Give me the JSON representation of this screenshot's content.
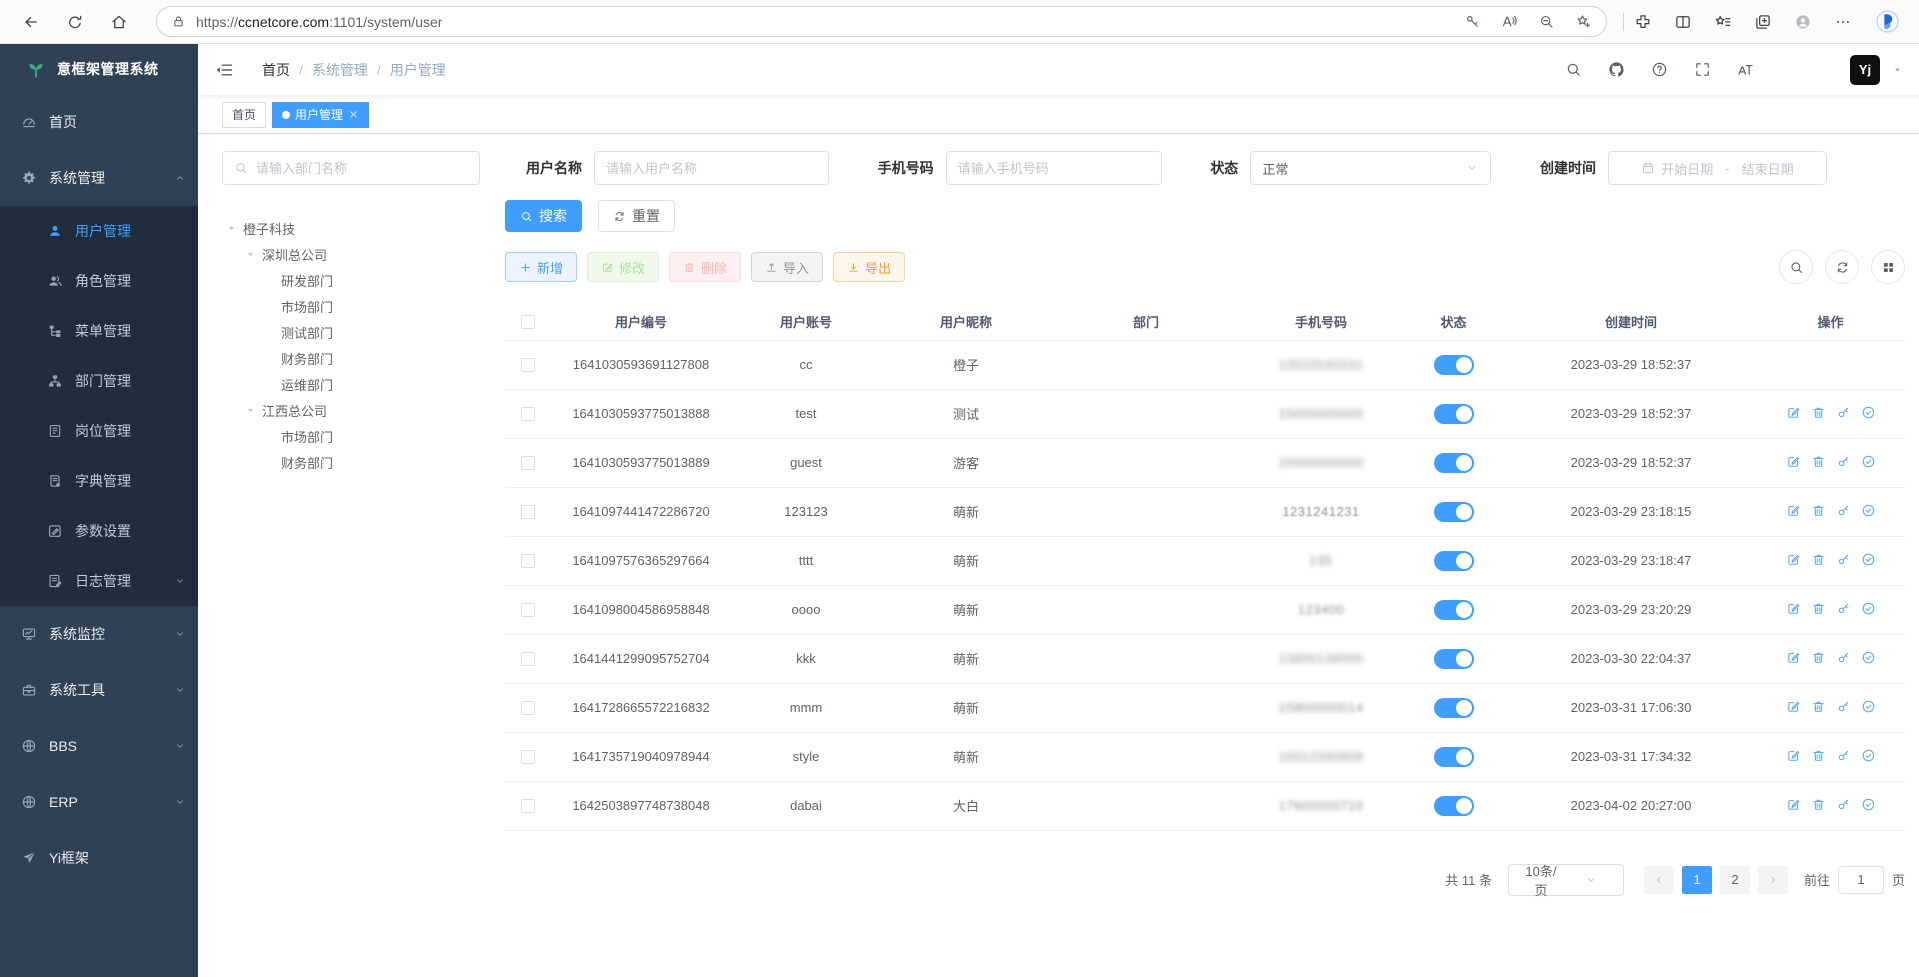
{
  "colors": {
    "primary": "#409eff",
    "success": "#67c23a",
    "danger": "#f56c6c",
    "warning": "#e6a23c",
    "info": "#909399",
    "sidebar_bg": "#304156",
    "submenu_bg": "#1f2d3d",
    "logo_green": "#3eaf7c",
    "toggle_on": "#409eff"
  },
  "browser": {
    "url_prefix": "https://",
    "url_host": "ccnetcore.com",
    "url_suffix": ":1101/system/user",
    "nav_icons": [
      "back",
      "reload",
      "home"
    ],
    "pill_icons": [
      "key",
      "read-aloud",
      "zoom-out",
      "favorite-add"
    ],
    "toolbar_icons": [
      "extensions",
      "split-screen",
      "favorites-bar",
      "collections",
      "profile",
      "more",
      "copilot"
    ]
  },
  "app": {
    "title": "意框架管理系统"
  },
  "sidebar": {
    "menu": [
      {
        "key": "home",
        "label": "首页",
        "icon": "dashboard"
      },
      {
        "key": "system-mgmt",
        "label": "系统管理",
        "icon": "gear",
        "arrow": "up",
        "children": [
          {
            "key": "user-mgmt",
            "label": "用户管理",
            "icon": "user",
            "active": true
          },
          {
            "key": "role-mgmt",
            "label": "角色管理",
            "icon": "role"
          },
          {
            "key": "menu-mgmt",
            "label": "菜单管理",
            "icon": "menu"
          },
          {
            "key": "dept-mgmt",
            "label": "部门管理",
            "icon": "dept"
          },
          {
            "key": "post-mgmt",
            "label": "岗位管理",
            "icon": "post"
          },
          {
            "key": "dict-mgmt",
            "label": "字典管理",
            "icon": "dict"
          },
          {
            "key": "param-settings",
            "label": "参数设置",
            "icon": "param"
          },
          {
            "key": "log-mgmt",
            "label": "日志管理",
            "icon": "log",
            "arrow": "down"
          }
        ]
      },
      {
        "key": "system-monitor",
        "label": "系统监控",
        "icon": "monitor",
        "arrow": "down"
      },
      {
        "key": "system-tools",
        "label": "系统工具",
        "icon": "tool",
        "arrow": "down"
      },
      {
        "key": "bbs",
        "label": "BBS",
        "icon": "globe",
        "arrow": "down"
      },
      {
        "key": "erp",
        "label": "ERP",
        "icon": "globe",
        "arrow": "down"
      },
      {
        "key": "yi-framework",
        "label": "Yi框架",
        "icon": "send"
      }
    ]
  },
  "breadcrumb": {
    "items": [
      "首页",
      "系统管理",
      "用户管理"
    ],
    "separator": "/"
  },
  "tabs": [
    {
      "label": "首页",
      "active": false
    },
    {
      "label": "用户管理",
      "active": true,
      "closable": true
    }
  ],
  "filters": {
    "dept_placeholder": "请输入部门名称",
    "username_label": "用户名称",
    "username_placeholder": "请输入用户名称",
    "phone_label": "手机号码",
    "phone_placeholder": "请输入手机号码",
    "status_label": "状态",
    "status_value": "正常",
    "created_label": "创建时间",
    "date_start_placeholder": "开始日期",
    "date_sep": "-",
    "date_end_placeholder": "结束日期",
    "search_button": "搜索",
    "reset_button": "重置"
  },
  "dept_tree": [
    {
      "label": "橙子科技",
      "level": 0,
      "expanded": true
    },
    {
      "label": "深圳总公司",
      "level": 1,
      "expanded": true
    },
    {
      "label": "研发部门",
      "level": 2
    },
    {
      "label": "市场部门",
      "level": 2
    },
    {
      "label": "测试部门",
      "level": 2
    },
    {
      "label": "财务部门",
      "level": 2
    },
    {
      "label": "运维部门",
      "level": 2
    },
    {
      "label": "江西总公司",
      "level": 1,
      "expanded": true
    },
    {
      "label": "市场部门",
      "level": 2
    },
    {
      "label": "财务部门",
      "level": 2
    }
  ],
  "toolbar": {
    "add": "新增",
    "edit": "修改",
    "delete": "删除",
    "import": "导入",
    "export": "导出"
  },
  "table": {
    "columns": [
      "用户编号",
      "用户账号",
      "用户昵称",
      "部门",
      "手机号码",
      "状态",
      "创建时间",
      "操作"
    ],
    "op_icons": [
      "edit",
      "trash",
      "key-op",
      "check"
    ],
    "rows": [
      {
        "id": "1641030593691127808",
        "account": "cc",
        "nickname": "橙子",
        "dept": "",
        "phone": "13523540241",
        "phone_blur": 3,
        "status_on": true,
        "created": "2023-03-29 18:52:37",
        "ops": false
      },
      {
        "id": "1641030593775013888",
        "account": "test",
        "nickname": "测试",
        "dept": "",
        "phone": "15000000000",
        "phone_blur": 2.4,
        "status_on": true,
        "created": "2023-03-29 18:52:37",
        "ops": true
      },
      {
        "id": "1641030593775013889",
        "account": "guest",
        "nickname": "游客",
        "dept": "",
        "phone": "15000000000",
        "phone_blur": 2.6,
        "status_on": true,
        "created": "2023-03-29 18:52:37",
        "ops": true
      },
      {
        "id": "1641097441472286720",
        "account": "123123",
        "nickname": "萌新",
        "dept": "",
        "phone": "1231241231",
        "phone_blur": 0.8,
        "status_on": true,
        "created": "2023-03-29 23:18:15",
        "ops": true
      },
      {
        "id": "1641097576365297664",
        "account": "tttt",
        "nickname": "萌新",
        "dept": "",
        "phone": "135",
        "phone_blur": 2.5,
        "status_on": true,
        "created": "2023-03-29 23:18:47",
        "ops": true
      },
      {
        "id": "1641098004586958848",
        "account": "oooo",
        "nickname": "萌新",
        "dept": "",
        "phone": "123400",
        "phone_blur": 1.8,
        "status_on": true,
        "created": "2023-03-29 23:20:29",
        "ops": true
      },
      {
        "id": "1641441299095752704",
        "account": "kkk",
        "nickname": "萌新",
        "dept": "",
        "phone": "13800138000",
        "phone_blur": 3,
        "status_on": true,
        "created": "2023-03-30 22:04:37",
        "ops": true
      },
      {
        "id": "1641728665572216832",
        "account": "mmm",
        "nickname": "萌新",
        "dept": "",
        "phone": "15800000014",
        "phone_blur": 2.2,
        "status_on": true,
        "created": "2023-03-31 17:06:30",
        "ops": true
      },
      {
        "id": "1641735719040978944",
        "account": "style",
        "nickname": "萌新",
        "dept": "",
        "phone": "15012340608",
        "phone_blur": 2.6,
        "status_on": true,
        "created": "2023-03-31 17:34:32",
        "ops": true
      },
      {
        "id": "1642503897748738048",
        "account": "dabai",
        "nickname": "大白",
        "dept": "",
        "phone": "17600000710",
        "phone_blur": 2.2,
        "status_on": true,
        "created": "2023-04-02 20:27:00",
        "ops": true
      }
    ]
  },
  "pagination": {
    "total_label": "共 11 条",
    "page_size": "10条/页",
    "pages": [
      {
        "label": "1",
        "active": true
      },
      {
        "label": "2",
        "active": false
      }
    ],
    "goto_label": "前往",
    "goto_value": "1",
    "page_unit": "页"
  }
}
